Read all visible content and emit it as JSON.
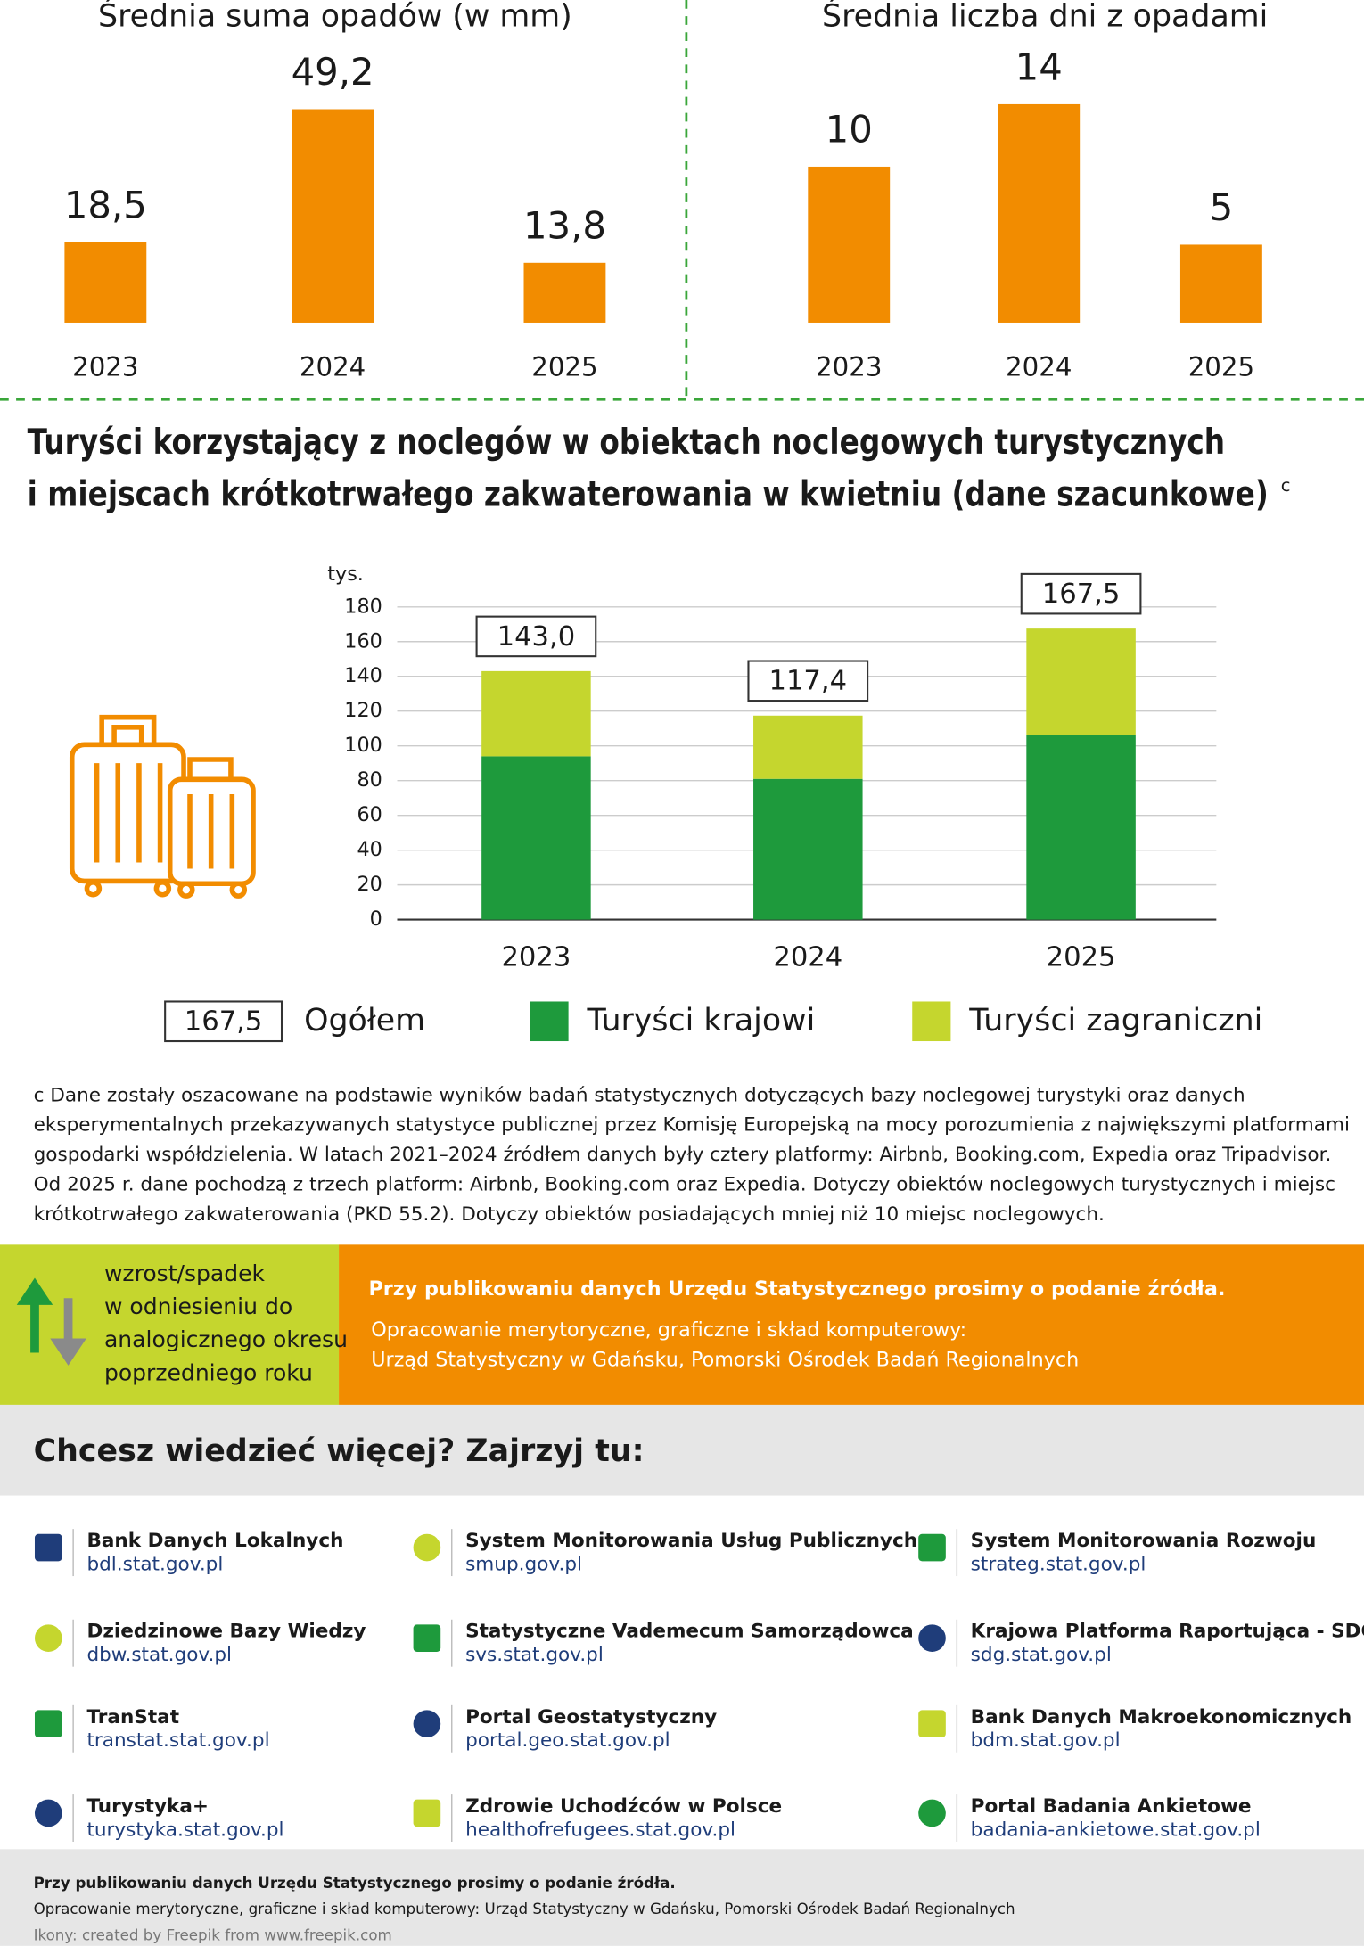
{
  "chart_data": [
    {
      "type": "bar",
      "title": "Średnia suma opadów (w mm)",
      "categories": [
        "2023",
        "2024",
        "2025"
      ],
      "values": [
        18.5,
        49.2,
        13.8
      ],
      "value_labels": [
        "18,5",
        "49,2",
        "13,8"
      ],
      "color": "#f28c00"
    },
    {
      "type": "bar",
      "title": "Średnia liczba dni z opadami",
      "categories": [
        "2023",
        "2024",
        "2025"
      ],
      "values": [
        10,
        14,
        5
      ],
      "color": "#f28c00"
    },
    {
      "type": "stacked_bar",
      "title": [
        "Turyści korzystający z noclegów w obiektach noclegowych turystycznych",
        "i miejscach krótkotrwałego zakwaterowania w kwietniu (dane szacunkowe)"
      ],
      "title_note": "c",
      "y_unit": "tys.",
      "categories": [
        "2023",
        "2024",
        "2025"
      ],
      "series": [
        {
          "name": "Turyści krajowi",
          "color": "#1e9a3c",
          "values": [
            94,
            81,
            106
          ]
        },
        {
          "name": "Turyści zagraniczni",
          "color": "#c5d62e",
          "values": [
            49,
            36.4,
            61.5
          ]
        }
      ],
      "totals": {
        "values": [
          143.0,
          117.4,
          167.5
        ],
        "value_labels": [
          "143,0",
          "117,4",
          "167,5"
        ]
      },
      "total_legend": {
        "sample": "167,5",
        "label": "Ogółem"
      },
      "ylim": [
        0,
        180
      ],
      "yticks": [
        0,
        20,
        40,
        60,
        80,
        100,
        120,
        140,
        160,
        180
      ],
      "grid": true
    }
  ],
  "footnote": [
    "c Dane zostały oszacowane na podstawie wyników badań statystycznych dotyczących bazy noclegowej turystyki oraz danych",
    "eksperymentalnych przekazywanych statystyce publicznej przez Komisję Europejską na mocy porozumienia z największymi platformami",
    "gospodarki współdzielenia. W latach 2021–2024 źródłem danych były cztery platformy: Airbnb, Booking.com, Expedia oraz Tripadvisor.",
    "Od 2025 r. dane pochodzą z trzech platform: Airbnb, Booking.com oraz Expedia. Dotyczy obiektów noclegowych turystycznych i miejsc",
    "krótkotrwałego zakwaterowania (PKD 55.2). Dotyczy obiektów posiadających mniej niż 10 miejsc noclegowych."
  ],
  "change_legend": [
    "wzrost/spadek",
    "w odniesieniu do",
    "analogicznego okresu",
    "poprzedniego roku"
  ],
  "source_banner": {
    "title": "Przy publikowaniu danych Urzędu Statystycznego prosimy o podanie źródła.",
    "lines": [
      "Opracowanie merytoryczne, graficzne i skład komputerowy:",
      "Urząd Statystyczny w Gdańsku, Pomorski Ośrodek Badań Regionalnych"
    ]
  },
  "more_header": "Chcesz wiedzieć więcej? Zajrzyj tu:",
  "links": [
    {
      "name": "Bank Danych Lokalnych",
      "url": "bdl.stat.gov.pl"
    },
    {
      "name": "System Monitorowania Usług Publicznych",
      "url": "smup.gov.pl"
    },
    {
      "name": "System Monitorowania Rozwoju",
      "url": "strateg.stat.gov.pl"
    },
    {
      "name": "Dziedzinowe Bazy Wiedzy",
      "url": "dbw.stat.gov.pl"
    },
    {
      "name": "Statystyczne Vademecum Samorządowca",
      "url": "svs.stat.gov.pl"
    },
    {
      "name": "Krajowa Platforma Raportująca - SDG",
      "url": "sdg.stat.gov.pl"
    },
    {
      "name": "TranStat",
      "url": "transtat.stat.gov.pl"
    },
    {
      "name": "Portal Geostatystyczny",
      "url": "portal.geo.stat.gov.pl"
    },
    {
      "name": "Bank Danych Makroekonomicznych",
      "url": "bdm.stat.gov.pl"
    },
    {
      "name": "Turystyka+",
      "url": "turystyka.stat.gov.pl"
    },
    {
      "name": "Zdrowie Uchodźców w Polsce",
      "url": "healthofrefugees.stat.gov.pl"
    },
    {
      "name": "Portal Badania Ankietowe",
      "url": "badania-ankietowe.stat.gov.pl"
    }
  ],
  "footer": [
    "Przy publikowaniu danych Urzędu Statystycznego prosimy o podanie źródła.",
    "Opracowanie merytoryczne, graficzne i skład komputerowy: Urząd Statystyczny w Gdańsku, Pomorski Ośrodek Badań Regionalnych",
    "Ikony: created by Freepik from www.freepik.com"
  ]
}
